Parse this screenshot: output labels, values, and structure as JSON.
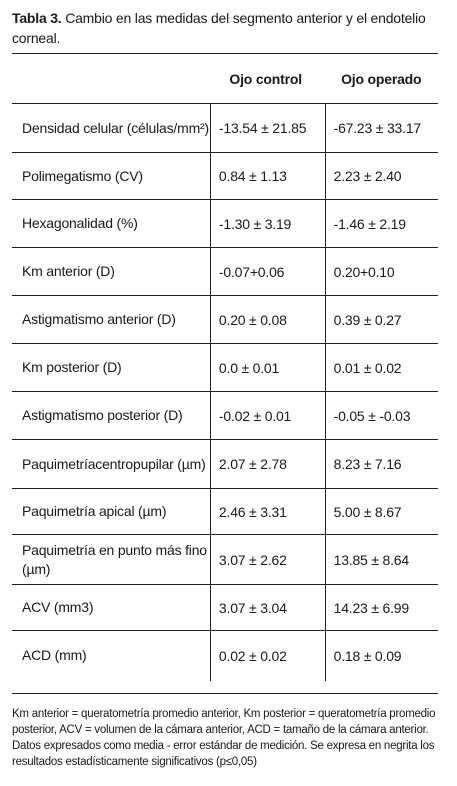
{
  "caption": {
    "label": "Tabla 3.",
    "text": " Cambio en las medidas del segmento anterior y el endotelio corneal."
  },
  "table": {
    "headers": [
      "",
      "Ojo control",
      "Ojo operado"
    ],
    "rows": [
      {
        "label": "Densidad celular (células/mm²)",
        "control": "-13.54 ± 21.85",
        "operado": "-67.23 ± 33.17",
        "h": 49
      },
      {
        "label": "Polimegatismo (CV)",
        "control": "0.84 ± 1.13",
        "operado": "2.23 ± 2.40",
        "h": 47
      },
      {
        "label": "Hexagonalidad (%)",
        "control": "-1.30 ± 3.19",
        "operado": "-1.46 ± 2.19",
        "h": 48
      },
      {
        "label": "Km anterior (D)",
        "control": "-0.07+0.06",
        "operado": "0.20+0.10",
        "h": 48
      },
      {
        "label": "Astigmatismo anterior (D)",
        "control": "0.20 ± 0.08",
        "operado": "0.39 ± 0.27",
        "h": 48
      },
      {
        "label": "Km posterior (D)",
        "control": "0.0 ± 0.01",
        "operado": "0.01 ± 0.02",
        "h": 48
      },
      {
        "label": "Astigmatismo posterior (D)",
        "control": "-0.02 ± 0.01",
        "operado": "-0.05 ± -0.03",
        "h": 48
      },
      {
        "label": "Paquimetríacentropupilar (µm)",
        "control": "2.07 ± 2.78",
        "operado": "8.23 ± 7.16",
        "h": 49
      },
      {
        "label": "Paquimetría apical (µm)",
        "control": "2.46 ± 3.31",
        "operado": "5.00 ± 8.67",
        "h": 46
      },
      {
        "label": "Paquimetría en punto más fino (µm)",
        "control": "3.07 ± 2.62",
        "operado": "13.85 ± 8.64",
        "h": 50
      },
      {
        "label": "ACV (mm3)",
        "control": "3.07 ± 3.04",
        "operado": "14.23 ± 6.99",
        "h": 46
      },
      {
        "label": "ACD (mm)",
        "control": "0.02 ± 0.02",
        "operado": "0.18 ± 0.09",
        "h": 50
      }
    ]
  },
  "footnote": "Km anterior = queratometría promedio anterior, Km posterior = queratometría promedio posterior, ACV = volumen de la cámara anterior, ACD = tamaño de la cámara anterior. Datos expresados como media - error estándar de medición. Se expresa en negrita los resultados estadísticamente significativos (p≤0,05)"
}
